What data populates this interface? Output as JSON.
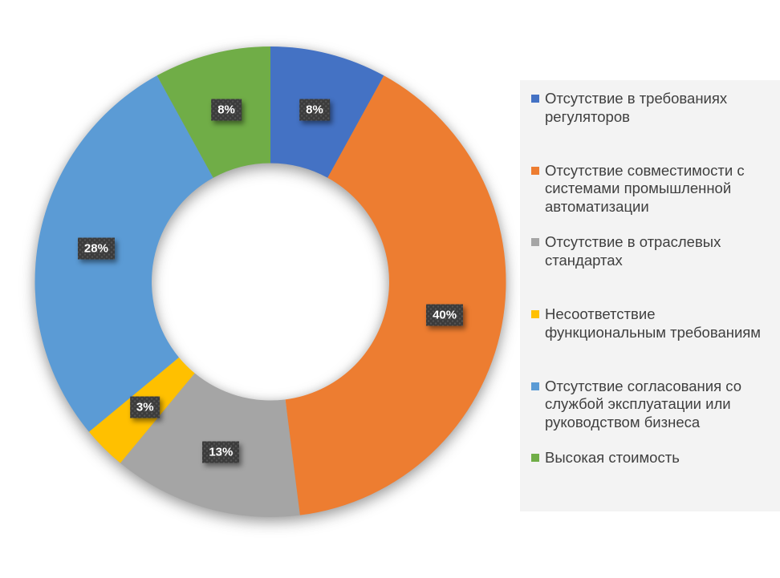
{
  "page": {
    "background": "#ffffff"
  },
  "chart_data": {
    "type": "pie",
    "subtype": "donut",
    "title": "",
    "start_angle_deg": 0,
    "direction": "clockwise",
    "legend_position": "right",
    "legend_background": "#f3f3f3",
    "legend_text_color": "#3f3f3f",
    "data_label_style": {
      "background": "#3b3b3b",
      "text_color": "#ffffff",
      "pattern": "dotted"
    },
    "slices": [
      {
        "label": "Отсутствие в требованиях регуляторов",
        "value_pct": 8,
        "data_label": "8%",
        "color": "#4472c4"
      },
      {
        "label": "Отсутствие совместимости с системами промышленной автоматизации",
        "value_pct": 40,
        "data_label": "40%",
        "color": "#ed7d31"
      },
      {
        "label": "Отсутствие в отраслевых стандартах",
        "value_pct": 13,
        "data_label": "13%",
        "color": "#a5a5a5"
      },
      {
        "label": "Несоответствие функциональным требованиям",
        "value_pct": 3,
        "data_label": "3%",
        "color": "#ffc000"
      },
      {
        "label": "Отсутствие согласования со службой эксплуатации или руководством бизнеса",
        "value_pct": 28,
        "data_label": "28%",
        "color": "#5b9bd5"
      },
      {
        "label": "Высокая стоимость",
        "value_pct": 8,
        "data_label": "8%",
        "color": "#70ad47"
      }
    ]
  }
}
